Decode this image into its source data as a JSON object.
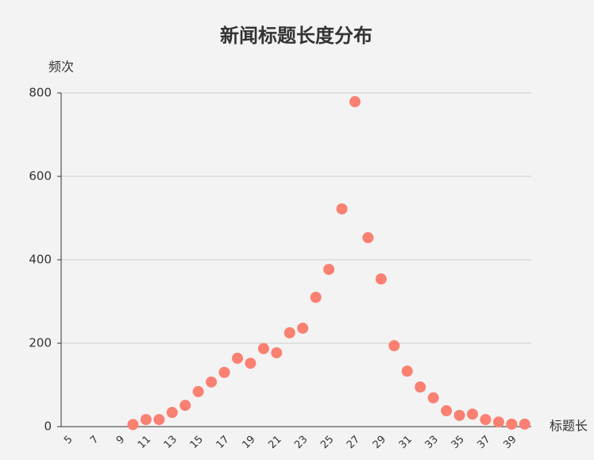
{
  "chart_data": {
    "type": "scatter",
    "title": "新闻标题长度分布",
    "y_label": "频次",
    "x_label": "标题长",
    "categories": [
      "5",
      null,
      "7",
      null,
      "9",
      null,
      "11",
      null,
      "13",
      null,
      "15",
      null,
      "17",
      null,
      "19",
      null,
      "21",
      null,
      "23",
      null,
      "25",
      null,
      "27",
      null,
      "29",
      null,
      "31",
      null,
      "33",
      null,
      "35",
      null,
      "37",
      null,
      "39",
      null
    ],
    "values": [
      null,
      null,
      null,
      null,
      null,
      5,
      17,
      17,
      34,
      51,
      84,
      107,
      130,
      164,
      152,
      187,
      177,
      225,
      236,
      310,
      377,
      522,
      779,
      453,
      354,
      194,
      133,
      95,
      69,
      38,
      27,
      30,
      17,
      11,
      6,
      6
    ],
    "color": "#fa8072",
    "ylim": [
      0,
      800
    ],
    "yticks": [
      0,
      200,
      400,
      600,
      800
    ],
    "grid": true
  }
}
